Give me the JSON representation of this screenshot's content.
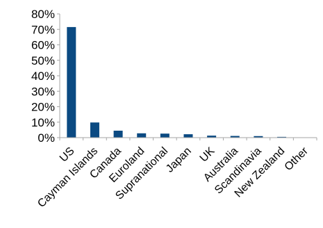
{
  "chart_data": {
    "type": "bar",
    "title": "",
    "xlabel": "",
    "ylabel": "",
    "categories": [
      "US",
      "Cayman Islands",
      "Canada",
      "Euroland",
      "Supranational",
      "Japan",
      "UK",
      "Australia",
      "Scandinavia",
      "New Zealand",
      "Other"
    ],
    "values": [
      71.5,
      9.8,
      4.5,
      2.8,
      2.6,
      2.2,
      1.3,
      1.1,
      1.0,
      0.5,
      0.2
    ],
    "ylim": [
      0,
      80
    ],
    "yticks": [
      {
        "value": 0,
        "label": "0%"
      },
      {
        "value": 10,
        "label": "10%"
      },
      {
        "value": 20,
        "label": "20%"
      },
      {
        "value": 30,
        "label": "30%"
      },
      {
        "value": 40,
        "label": "40%"
      },
      {
        "value": 50,
        "label": "50%"
      },
      {
        "value": 60,
        "label": "60%"
      },
      {
        "value": 70,
        "label": "70%"
      },
      {
        "value": 80,
        "label": "80%"
      }
    ],
    "grid": false,
    "legend": "none",
    "bar_color": "#0b4a82",
    "axis_color": "#a6a6a6"
  }
}
